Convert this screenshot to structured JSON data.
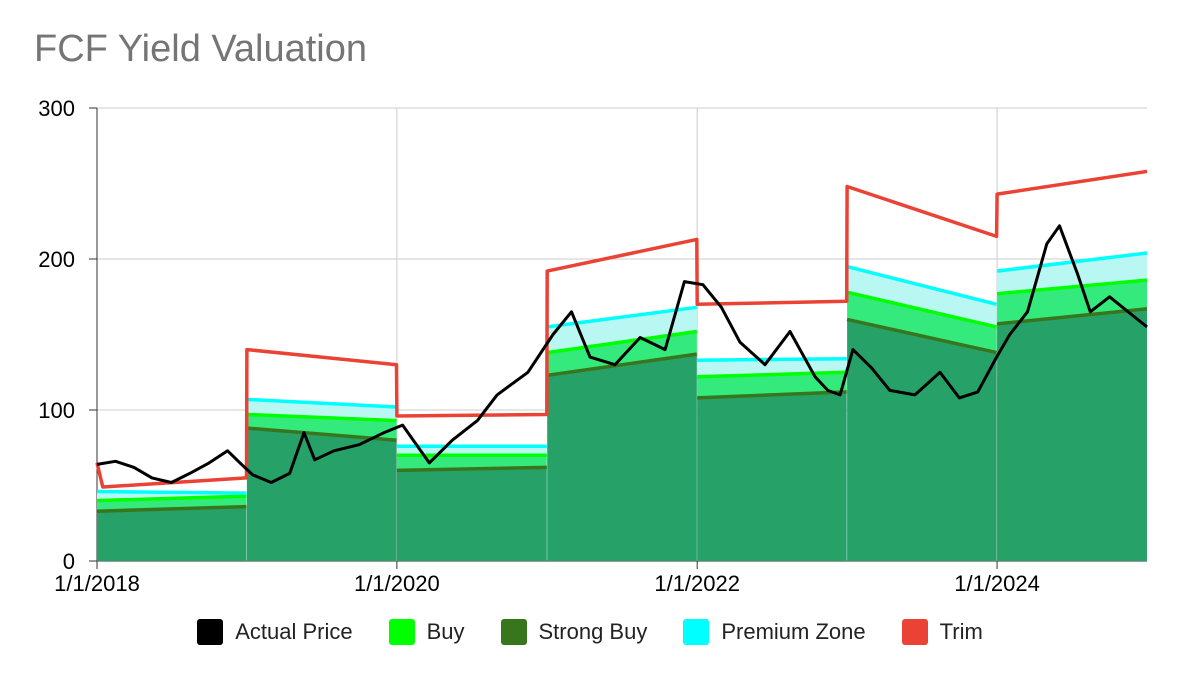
{
  "title": "FCF Yield Valuation",
  "chart_data": {
    "type": "area",
    "title": "FCF Yield Valuation",
    "xlabel": "",
    "ylabel": "",
    "x_ticks": [
      "1/1/2018",
      "1/1/2020",
      "1/1/2022",
      "1/1/2024"
    ],
    "y_ticks": [
      "0",
      "100",
      "200",
      "300"
    ],
    "ylim": [
      0,
      300
    ],
    "xlim": [
      "2018-01-01",
      "2024-12-31"
    ],
    "grid": true,
    "legend_position": "bottom",
    "series": [
      {
        "name": "Actual Price",
        "color": "#000000",
        "points": [
          [
            "2018-01-01",
            64
          ],
          [
            "2018-02-15",
            66
          ],
          [
            "2018-04-01",
            62
          ],
          [
            "2018-05-15",
            55
          ],
          [
            "2018-07-01",
            52
          ],
          [
            "2018-08-15",
            58
          ],
          [
            "2018-10-01",
            65
          ],
          [
            "2018-11-15",
            73
          ],
          [
            "2018-12-15",
            65
          ],
          [
            "2019-01-15",
            57
          ],
          [
            "2019-03-01",
            52
          ],
          [
            "2019-04-15",
            58
          ],
          [
            "2019-05-20",
            85
          ],
          [
            "2019-06-15",
            67
          ],
          [
            "2019-08-01",
            73
          ],
          [
            "2019-10-01",
            77
          ],
          [
            "2019-12-01",
            85
          ],
          [
            "2020-01-15",
            90
          ],
          [
            "2020-03-20",
            65
          ],
          [
            "2020-05-15",
            80
          ],
          [
            "2020-07-15",
            93
          ],
          [
            "2020-09-01",
            110
          ],
          [
            "2020-11-15",
            125
          ],
          [
            "2021-01-15",
            150
          ],
          [
            "2021-03-01",
            165
          ],
          [
            "2021-04-15",
            135
          ],
          [
            "2021-06-15",
            130
          ],
          [
            "2021-08-15",
            148
          ],
          [
            "2021-10-15",
            140
          ],
          [
            "2021-12-01",
            185
          ],
          [
            "2022-01-15",
            183
          ],
          [
            "2022-03-01",
            168
          ],
          [
            "2022-04-15",
            145
          ],
          [
            "2022-06-15",
            130
          ],
          [
            "2022-08-15",
            152
          ],
          [
            "2022-10-15",
            122
          ],
          [
            "2022-11-15",
            113
          ],
          [
            "2022-12-15",
            110
          ],
          [
            "2023-01-15",
            140
          ],
          [
            "2023-03-01",
            128
          ],
          [
            "2023-04-15",
            113
          ],
          [
            "2023-06-15",
            110
          ],
          [
            "2023-08-15",
            125
          ],
          [
            "2023-10-01",
            108
          ],
          [
            "2023-11-15",
            112
          ],
          [
            "2023-12-31",
            135
          ],
          [
            "2024-02-01",
            150
          ],
          [
            "2024-03-15",
            165
          ],
          [
            "2024-05-01",
            210
          ],
          [
            "2024-06-01",
            222
          ],
          [
            "2024-07-15",
            190
          ],
          [
            "2024-08-15",
            165
          ],
          [
            "2024-10-01",
            175
          ],
          [
            "2024-11-15",
            165
          ],
          [
            "2024-12-31",
            155
          ]
        ]
      },
      {
        "name": "Buy",
        "color": "#00ff00",
        "segments": [
          [
            [
              "2018-01-01",
              40
            ],
            [
              "2018-12-31",
              43
            ]
          ],
          [
            [
              "2019-01-01",
              97
            ],
            [
              "2019-12-31",
              93
            ]
          ],
          [
            [
              "2020-01-01",
              70
            ],
            [
              "2020-12-31",
              70
            ]
          ],
          [
            [
              "2021-01-01",
              138
            ],
            [
              "2021-12-31",
              152
            ]
          ],
          [
            [
              "2022-01-01",
              122
            ],
            [
              "2022-12-31",
              125
            ]
          ],
          [
            [
              "2023-01-01",
              178
            ],
            [
              "2023-12-31",
              155
            ]
          ],
          [
            [
              "2024-01-01",
              177
            ],
            [
              "2024-12-31",
              186
            ]
          ]
        ]
      },
      {
        "name": "Strong Buy",
        "color": "#38761d",
        "segments": [
          [
            [
              "2018-01-01",
              33
            ],
            [
              "2018-12-31",
              36
            ]
          ],
          [
            [
              "2019-01-01",
              88
            ],
            [
              "2019-12-31",
              80
            ]
          ],
          [
            [
              "2020-01-01",
              60
            ],
            [
              "2020-12-31",
              62
            ]
          ],
          [
            [
              "2021-01-01",
              123
            ],
            [
              "2021-12-31",
              137
            ]
          ],
          [
            [
              "2022-01-01",
              108
            ],
            [
              "2022-12-31",
              112
            ]
          ],
          [
            [
              "2023-01-01",
              160
            ],
            [
              "2023-12-31",
              138
            ]
          ],
          [
            [
              "2024-01-01",
              157
            ],
            [
              "2024-12-31",
              167
            ]
          ]
        ]
      },
      {
        "name": "Premium Zone",
        "color": "#00ffff",
        "segments": [
          [
            [
              "2018-01-01",
              46
            ],
            [
              "2018-12-31",
              45
            ]
          ],
          [
            [
              "2019-01-01",
              107
            ],
            [
              "2019-12-31",
              102
            ]
          ],
          [
            [
              "2020-01-01",
              76
            ],
            [
              "2020-12-31",
              76
            ]
          ],
          [
            [
              "2021-01-01",
              155
            ],
            [
              "2021-12-31",
              168
            ]
          ],
          [
            [
              "2022-01-01",
              133
            ],
            [
              "2022-12-31",
              134
            ]
          ],
          [
            [
              "2023-01-01",
              195
            ],
            [
              "2023-12-31",
              170
            ]
          ],
          [
            [
              "2024-01-01",
              192
            ],
            [
              "2024-12-31",
              204
            ]
          ]
        ]
      },
      {
        "name": "Trim",
        "color": "#ea4335",
        "segments": [
          [
            [
              "2018-01-01",
              65
            ],
            [
              "2018-01-15",
              49
            ],
            [
              "2018-12-31",
              55
            ]
          ],
          [
            [
              "2019-01-01",
              140
            ],
            [
              "2019-12-31",
              130
            ]
          ],
          [
            [
              "2020-01-01",
              96
            ],
            [
              "2020-12-31",
              97
            ]
          ],
          [
            [
              "2021-01-01",
              192
            ],
            [
              "2021-12-31",
              213
            ]
          ],
          [
            [
              "2022-01-01",
              170
            ],
            [
              "2022-12-31",
              172
            ]
          ],
          [
            [
              "2023-01-01",
              248
            ],
            [
              "2023-12-31",
              215
            ]
          ],
          [
            [
              "2024-01-01",
              243
            ],
            [
              "2024-12-31",
              258
            ]
          ]
        ]
      }
    ]
  }
}
